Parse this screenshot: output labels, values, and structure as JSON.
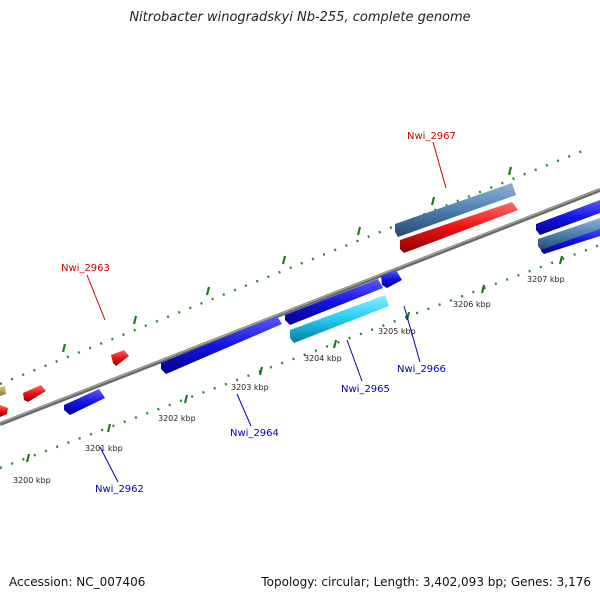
{
  "title": "Nitrobacter winogradskyi Nb-255, complete genome",
  "footer": {
    "accession": "Accession: NC_007406",
    "topology": "Topology: circular; Length: 3,402,093 bp; Genes: 3,176"
  },
  "colors": {
    "backbone": "#777777",
    "tick": "#2a8a2a",
    "forward_gene": "#ee1111",
    "reverse_gene": "#1111dd",
    "forward_label": "#cc0000",
    "reverse_label": "#0000bb",
    "steelblue_track": "#4d7fb0",
    "cyan_track": "#22ccf0"
  },
  "scale_labels": [
    "3200 kbp",
    "3201 kbp",
    "3202 kbp",
    "3203 kbp",
    "3204 kbp",
    "3205 kbp",
    "3206 kbp",
    "3207 kbp"
  ],
  "gene_labels": [
    {
      "id": "Nwi_2962",
      "strand": "reverse"
    },
    {
      "id": "Nwi_2963",
      "strand": "forward"
    },
    {
      "id": "Nwi_2964",
      "strand": "reverse"
    },
    {
      "id": "Nwi_2965",
      "strand": "reverse"
    },
    {
      "id": "Nwi_2966",
      "strand": "reverse"
    },
    {
      "id": "Nwi_2967",
      "strand": "forward"
    }
  ]
}
